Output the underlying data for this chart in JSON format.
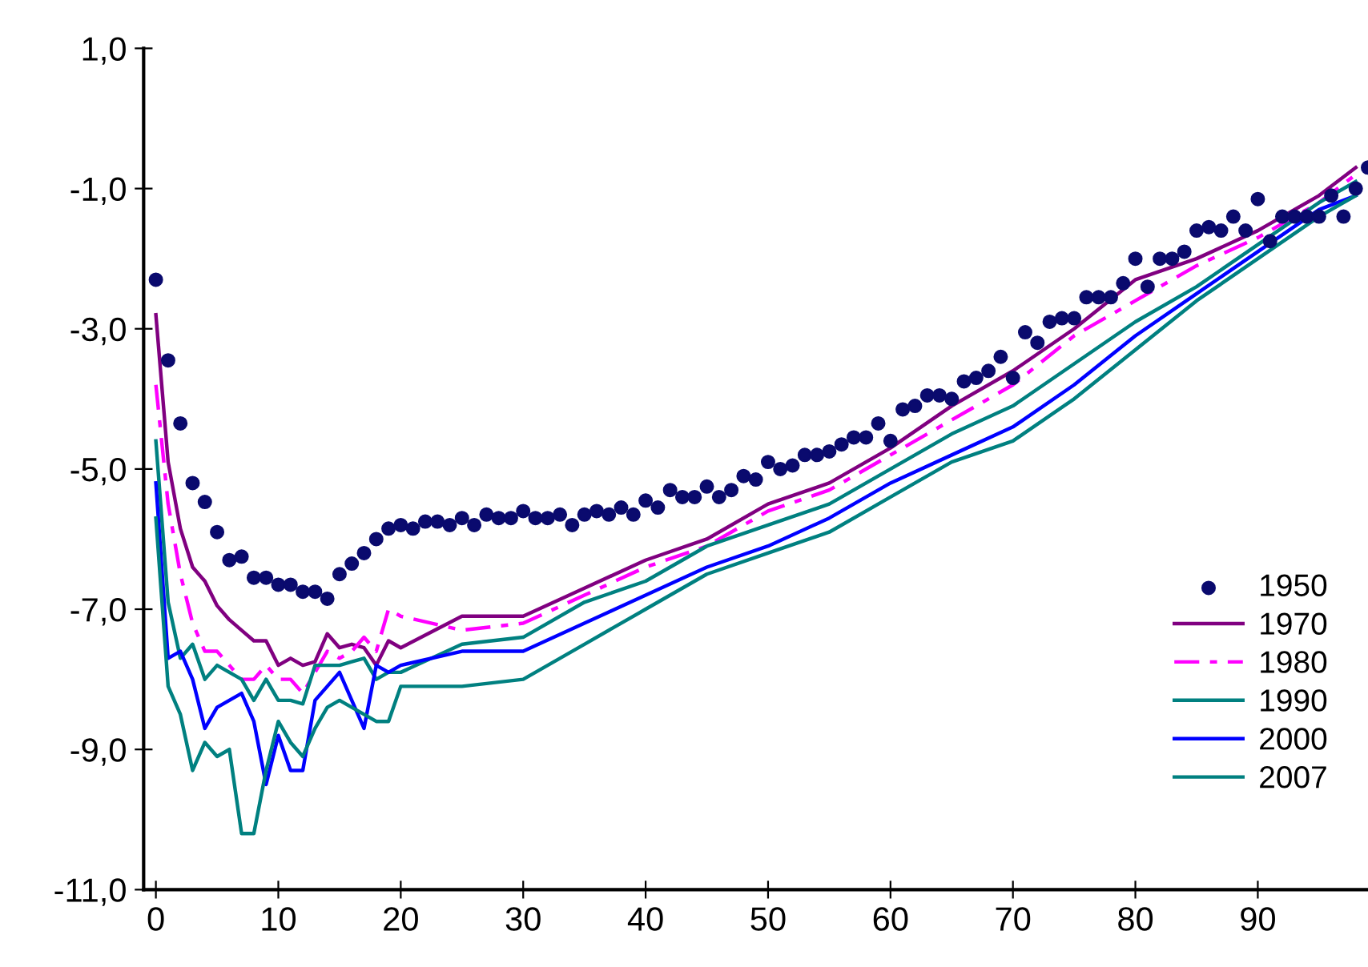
{
  "chart_data": {
    "type": "line",
    "xlim": [
      -1,
      99
    ],
    "xticks": [
      0,
      10,
      20,
      30,
      40,
      50,
      60,
      70,
      80,
      90
    ],
    "ylim": [
      -11,
      1
    ],
    "yticks": [
      {
        "value": 1,
        "label": "1,0"
      },
      {
        "value": -1,
        "label": "-1,0"
      },
      {
        "value": -3,
        "label": "-3,0"
      },
      {
        "value": -5,
        "label": "-5,0"
      },
      {
        "value": -7,
        "label": "-7,0"
      },
      {
        "value": -9,
        "label": "-9,0"
      },
      {
        "value": -11,
        "label": "-11,0"
      }
    ],
    "grid": false,
    "legend": "bottom right",
    "series": [
      {
        "name": "1950",
        "type": "scatter",
        "marker": "circle",
        "color": "#0a0a6e",
        "x": [
          0,
          1,
          2,
          3,
          4,
          5,
          6,
          7,
          8,
          9,
          10,
          11,
          12,
          13,
          14,
          15,
          16,
          17,
          18,
          19,
          20,
          21,
          22,
          23,
          24,
          25,
          26,
          27,
          28,
          29,
          30,
          31,
          32,
          33,
          34,
          35,
          36,
          37,
          38,
          39,
          40,
          41,
          42,
          43,
          44,
          45,
          46,
          47,
          48,
          49,
          50,
          51,
          52,
          53,
          54,
          55,
          56,
          57,
          58,
          59,
          60,
          61,
          62,
          63,
          64,
          65,
          66,
          67,
          68,
          69,
          70,
          71,
          72,
          73,
          74,
          75,
          76,
          77,
          78,
          79,
          80,
          81,
          82,
          83,
          84,
          85,
          86,
          87,
          88,
          89,
          90,
          91,
          92,
          93,
          94,
          95,
          96,
          97,
          98,
          99
        ],
        "values": [
          -2.3,
          -3.45,
          -4.35,
          -5.2,
          -5.47,
          -5.9,
          -6.3,
          -6.25,
          -6.55,
          -6.55,
          -6.65,
          -6.65,
          -6.75,
          -6.75,
          -6.85,
          -6.5,
          -6.35,
          -6.2,
          -6.0,
          -5.85,
          -5.8,
          -5.85,
          -5.75,
          -5.75,
          -5.8,
          -5.7,
          -5.8,
          -5.65,
          -5.7,
          -5.7,
          -5.6,
          -5.7,
          -5.7,
          -5.65,
          -5.8,
          -5.65,
          -5.6,
          -5.65,
          -5.55,
          -5.65,
          -5.45,
          -5.55,
          -5.3,
          -5.4,
          -5.4,
          -5.25,
          -5.4,
          -5.3,
          -5.1,
          -5.15,
          -4.9,
          -5.0,
          -4.95,
          -4.8,
          -4.8,
          -4.75,
          -4.65,
          -4.55,
          -4.55,
          -4.35,
          -4.6,
          -4.15,
          -4.1,
          -3.95,
          -3.95,
          -4.0,
          -3.75,
          -3.7,
          -3.6,
          -3.4,
          -3.7,
          -3.05,
          -3.2,
          -2.9,
          -2.85,
          -2.85,
          -2.55,
          -2.55,
          -2.55,
          -2.35,
          -2.0,
          -2.4,
          -2.0,
          -2.0,
          -1.9,
          -1.6,
          -1.55,
          -1.6,
          -1.4,
          -1.6,
          -1.15,
          -1.75,
          -1.4,
          -1.4,
          -1.4,
          -1.4,
          -1.1,
          -1.4,
          -1.0,
          -0.7
        ]
      },
      {
        "name": "1970",
        "line_style": "solid",
        "color": "#800080",
        "x": [
          0,
          1,
          2,
          3,
          4,
          5,
          6,
          7,
          8,
          9,
          10,
          11,
          12,
          13,
          14,
          15,
          16,
          17,
          18,
          19,
          20,
          25,
          30,
          35,
          40,
          45,
          50,
          55,
          60,
          65,
          70,
          75,
          80,
          85,
          90,
          95,
          98
        ],
        "values": [
          -2.8,
          -4.9,
          -5.85,
          -6.4,
          -6.6,
          -6.95,
          -7.15,
          -7.3,
          -7.45,
          -7.45,
          -7.8,
          -7.7,
          -7.8,
          -7.75,
          -7.35,
          -7.55,
          -7.5,
          -7.55,
          -7.8,
          -7.45,
          -7.55,
          -7.1,
          -7.1,
          -6.7,
          -6.3,
          -6.0,
          -5.5,
          -5.2,
          -4.7,
          -4.1,
          -3.6,
          -3.0,
          -2.3,
          -2.0,
          -1.6,
          -1.1,
          -0.7
        ]
      },
      {
        "name": "1980",
        "line_style": "dashdot",
        "color": "#ff00ff",
        "x": [
          0,
          1,
          2,
          3,
          4,
          5,
          6,
          7,
          8,
          9,
          10,
          11,
          12,
          13,
          14,
          15,
          16,
          17,
          18,
          19,
          20,
          25,
          30,
          35,
          40,
          45,
          50,
          55,
          60,
          65,
          70,
          75,
          80,
          85,
          90,
          95,
          98
        ],
        "values": [
          -3.8,
          -5.5,
          -6.5,
          -7.2,
          -7.6,
          -7.6,
          -7.8,
          -8.0,
          -8.0,
          -7.8,
          -8.0,
          -8.0,
          -8.2,
          -7.9,
          -7.6,
          -7.7,
          -7.6,
          -7.4,
          -7.6,
          -7.0,
          -7.1,
          -7.3,
          -7.2,
          -6.8,
          -6.4,
          -6.1,
          -5.6,
          -5.3,
          -4.8,
          -4.3,
          -3.8,
          -3.1,
          -2.6,
          -2.1,
          -1.7,
          -1.2,
          -0.8
        ]
      },
      {
        "name": "1990",
        "line_style": "solid",
        "color": "#008080",
        "x": [
          0,
          1,
          2,
          3,
          4,
          5,
          6,
          7,
          8,
          9,
          10,
          11,
          12,
          13,
          14,
          15,
          16,
          17,
          18,
          19,
          20,
          25,
          30,
          35,
          40,
          45,
          50,
          55,
          60,
          65,
          70,
          75,
          80,
          85,
          90,
          95,
          98
        ],
        "values": [
          -4.6,
          -6.9,
          -7.7,
          -7.5,
          -8.0,
          -7.8,
          -7.9,
          -8.0,
          -8.3,
          -8.0,
          -8.3,
          -8.3,
          -8.35,
          -7.8,
          -7.8,
          -7.8,
          -7.75,
          -7.7,
          -8.0,
          -7.9,
          -7.9,
          -7.5,
          -7.4,
          -6.9,
          -6.6,
          -6.1,
          -5.8,
          -5.5,
          -5.0,
          -4.5,
          -4.1,
          -3.5,
          -2.9,
          -2.4,
          -1.8,
          -1.2,
          -0.9
        ]
      },
      {
        "name": "2000",
        "line_style": "solid",
        "color": "#0000ff",
        "x": [
          0,
          1,
          2,
          3,
          4,
          5,
          6,
          7,
          8,
          9,
          10,
          11,
          12,
          13,
          14,
          15,
          16,
          17,
          18,
          19,
          20,
          25,
          30,
          35,
          40,
          45,
          50,
          55,
          60,
          65,
          70,
          75,
          80,
          85,
          90,
          95,
          98
        ],
        "values": [
          -5.2,
          -7.7,
          -7.6,
          -8.0,
          -8.7,
          -8.4,
          -8.3,
          -8.2,
          -8.6,
          -9.5,
          -8.8,
          -9.3,
          -9.3,
          -8.3,
          -8.1,
          -7.9,
          -8.3,
          -8.7,
          -7.8,
          -7.9,
          -7.8,
          -7.6,
          -7.6,
          -7.2,
          -6.8,
          -6.4,
          -6.1,
          -5.7,
          -5.2,
          -4.8,
          -4.4,
          -3.8,
          -3.1,
          -2.5,
          -1.9,
          -1.3,
          -1.1
        ]
      },
      {
        "name": "2007",
        "line_style": "solid",
        "color": "#008080",
        "x": [
          0,
          1,
          2,
          3,
          4,
          5,
          6,
          7,
          8,
          9,
          10,
          11,
          12,
          13,
          14,
          15,
          16,
          17,
          18,
          19,
          20,
          25,
          30,
          35,
          40,
          45,
          50,
          55,
          60,
          65,
          70,
          75,
          80,
          85,
          90,
          95,
          98
        ],
        "values": [
          -5.7,
          -8.1,
          -8.5,
          -9.3,
          -8.9,
          -9.1,
          -9.0,
          -10.2,
          -10.2,
          -9.3,
          -8.6,
          -8.9,
          -9.1,
          -8.7,
          -8.4,
          -8.3,
          -8.4,
          -8.5,
          -8.6,
          -8.6,
          -8.1,
          -8.1,
          -8.0,
          -7.5,
          -7.0,
          -6.5,
          -6.2,
          -5.9,
          -5.4,
          -4.9,
          -4.6,
          -4.0,
          -3.3,
          -2.6,
          -2.0,
          -1.4,
          -1.1
        ]
      }
    ]
  }
}
